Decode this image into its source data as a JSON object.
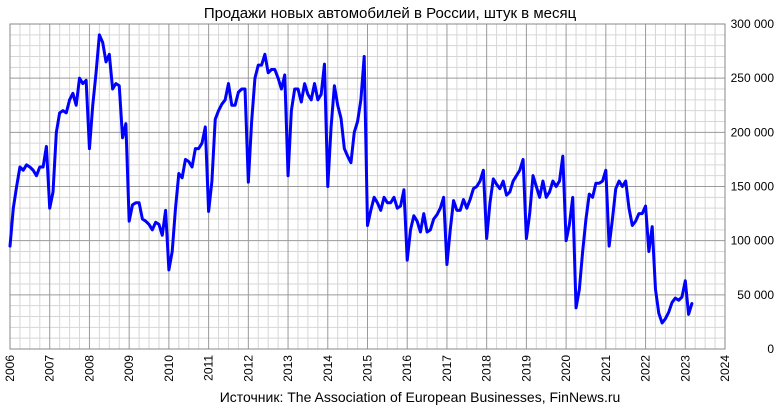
{
  "chart_data": {
    "type": "line",
    "title": "Продажи новых автомобилей в России, штук в месяц",
    "source": "Источник: The Association of European Businesses, FinNews.ru",
    "x_ticks": [
      "2006",
      "2007",
      "2008",
      "2009",
      "2010",
      "2011",
      "2012",
      "2013",
      "2014",
      "2015",
      "2016",
      "2017",
      "2018",
      "2019",
      "2020",
      "2021",
      "2022",
      "2023",
      "2024"
    ],
    "y_ticks": [
      "0",
      "50 000",
      "100 000",
      "150 000",
      "200 000",
      "250 000",
      "300 000"
    ],
    "xlim": [
      2006,
      2024
    ],
    "ylim": [
      0,
      300000
    ],
    "grid": true,
    "y_axis_side": "right",
    "line_color": "#0000ff",
    "series": [
      {
        "x_start": 2006.0,
        "x_step": 0.0833333,
        "values": [
          95000,
          130000,
          150000,
          168000,
          165000,
          170000,
          168000,
          165000,
          160000,
          168000,
          168000,
          187000,
          130000,
          145000,
          200000,
          218000,
          220000,
          218000,
          230000,
          236000,
          225000,
          250000,
          245000,
          248000,
          185000,
          225000,
          255000,
          290000,
          283000,
          265000,
          272000,
          240000,
          245000,
          243000,
          195000,
          208000,
          118000,
          133000,
          135000,
          135000,
          120000,
          118000,
          115000,
          110000,
          117000,
          115000,
          105000,
          128000,
          73000,
          90000,
          130000,
          162000,
          158000,
          175000,
          173000,
          168000,
          185000,
          185000,
          190000,
          205000,
          127000,
          155000,
          212000,
          220000,
          226000,
          230000,
          245000,
          225000,
          225000,
          237000,
          240000,
          240000,
          154000,
          210000,
          250000,
          262000,
          262000,
          272000,
          255000,
          258000,
          258000,
          250000,
          240000,
          253000,
          160000,
          220000,
          240000,
          240000,
          228000,
          245000,
          235000,
          230000,
          245000,
          230000,
          235000,
          263000,
          150000,
          205000,
          243000,
          225000,
          213000,
          185000,
          178000,
          172000,
          200000,
          210000,
          230000,
          270000,
          114000,
          128000,
          140000,
          135000,
          128000,
          140000,
          135000,
          135000,
          140000,
          130000,
          132000,
          147000,
          82000,
          110000,
          123000,
          118000,
          108000,
          125000,
          108000,
          110000,
          120000,
          124000,
          130000,
          140000,
          78000,
          110000,
          137000,
          128000,
          128000,
          138000,
          130000,
          138000,
          148000,
          150000,
          155000,
          165000,
          102000,
          135000,
          157000,
          152000,
          148000,
          155000,
          142000,
          145000,
          155000,
          160000,
          165000,
          175000,
          102000,
          125000,
          160000,
          150000,
          140000,
          155000,
          140000,
          145000,
          155000,
          150000,
          155000,
          178000,
          100000,
          115000,
          140000,
          38000,
          55000,
          90000,
          120000,
          143000,
          140000,
          153000,
          153000,
          155000,
          165000,
          95000,
          120000,
          148000,
          155000,
          150000,
          155000,
          130000,
          114000,
          118000,
          125000,
          125000,
          132000,
          90000,
          113000,
          55000,
          33000,
          24000,
          28000,
          34000,
          43000,
          47000,
          45000,
          48000,
          63000,
          32000,
          42000
        ]
      }
    ]
  }
}
